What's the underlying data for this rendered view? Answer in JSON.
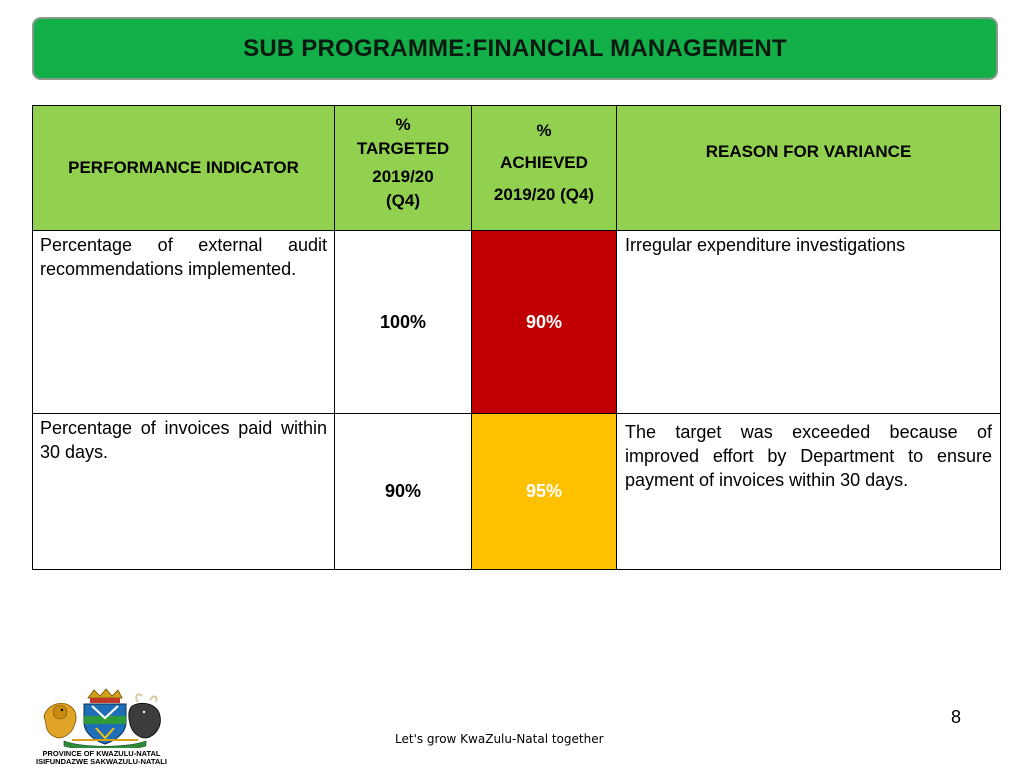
{
  "slide": {
    "title": "SUB PROGRAMME:FINANCIAL MANAGEMENT",
    "page_number": "8",
    "footer": "Let's grow KwaZulu-Natal together"
  },
  "colors": {
    "title_bar": "#13b04a",
    "header_fill": "#92d050",
    "status_red": "#c00000",
    "status_amber": "#ffc000"
  },
  "table": {
    "headers": {
      "indicator": "PERFORMANCE INDICATOR",
      "targeted_pct": "%",
      "targeted_label": "TARGETED",
      "targeted_period_1": "2019/20",
      "targeted_period_2": "(Q4)",
      "achieved_pct": "%",
      "achieved_label": "ACHIEVED",
      "achieved_period": "2019/20 (Q4)",
      "reason": "REASON FOR VARIANCE"
    },
    "rows": [
      {
        "indicator": "Percentage of external audit recommendations implemented.",
        "target": "100%",
        "achieved": "90%",
        "status_color": "#c00000",
        "reason": "Irregular expenditure investigations"
      },
      {
        "indicator": "Percentage of invoices paid within 30 days.",
        "target": "90%",
        "achieved": "95%",
        "status_color": "#ffc000",
        "reason": "The target was exceeded because of improved effort by Department to ensure payment of invoices within 30 days."
      }
    ]
  },
  "logo": {
    "icon": "kzn-coat-of-arms-icon",
    "line1": "PROVINCE OF KWAZULU-NATAL",
    "line2": "ISIFUNDAZWE SAKWAZULU-NATALI"
  }
}
